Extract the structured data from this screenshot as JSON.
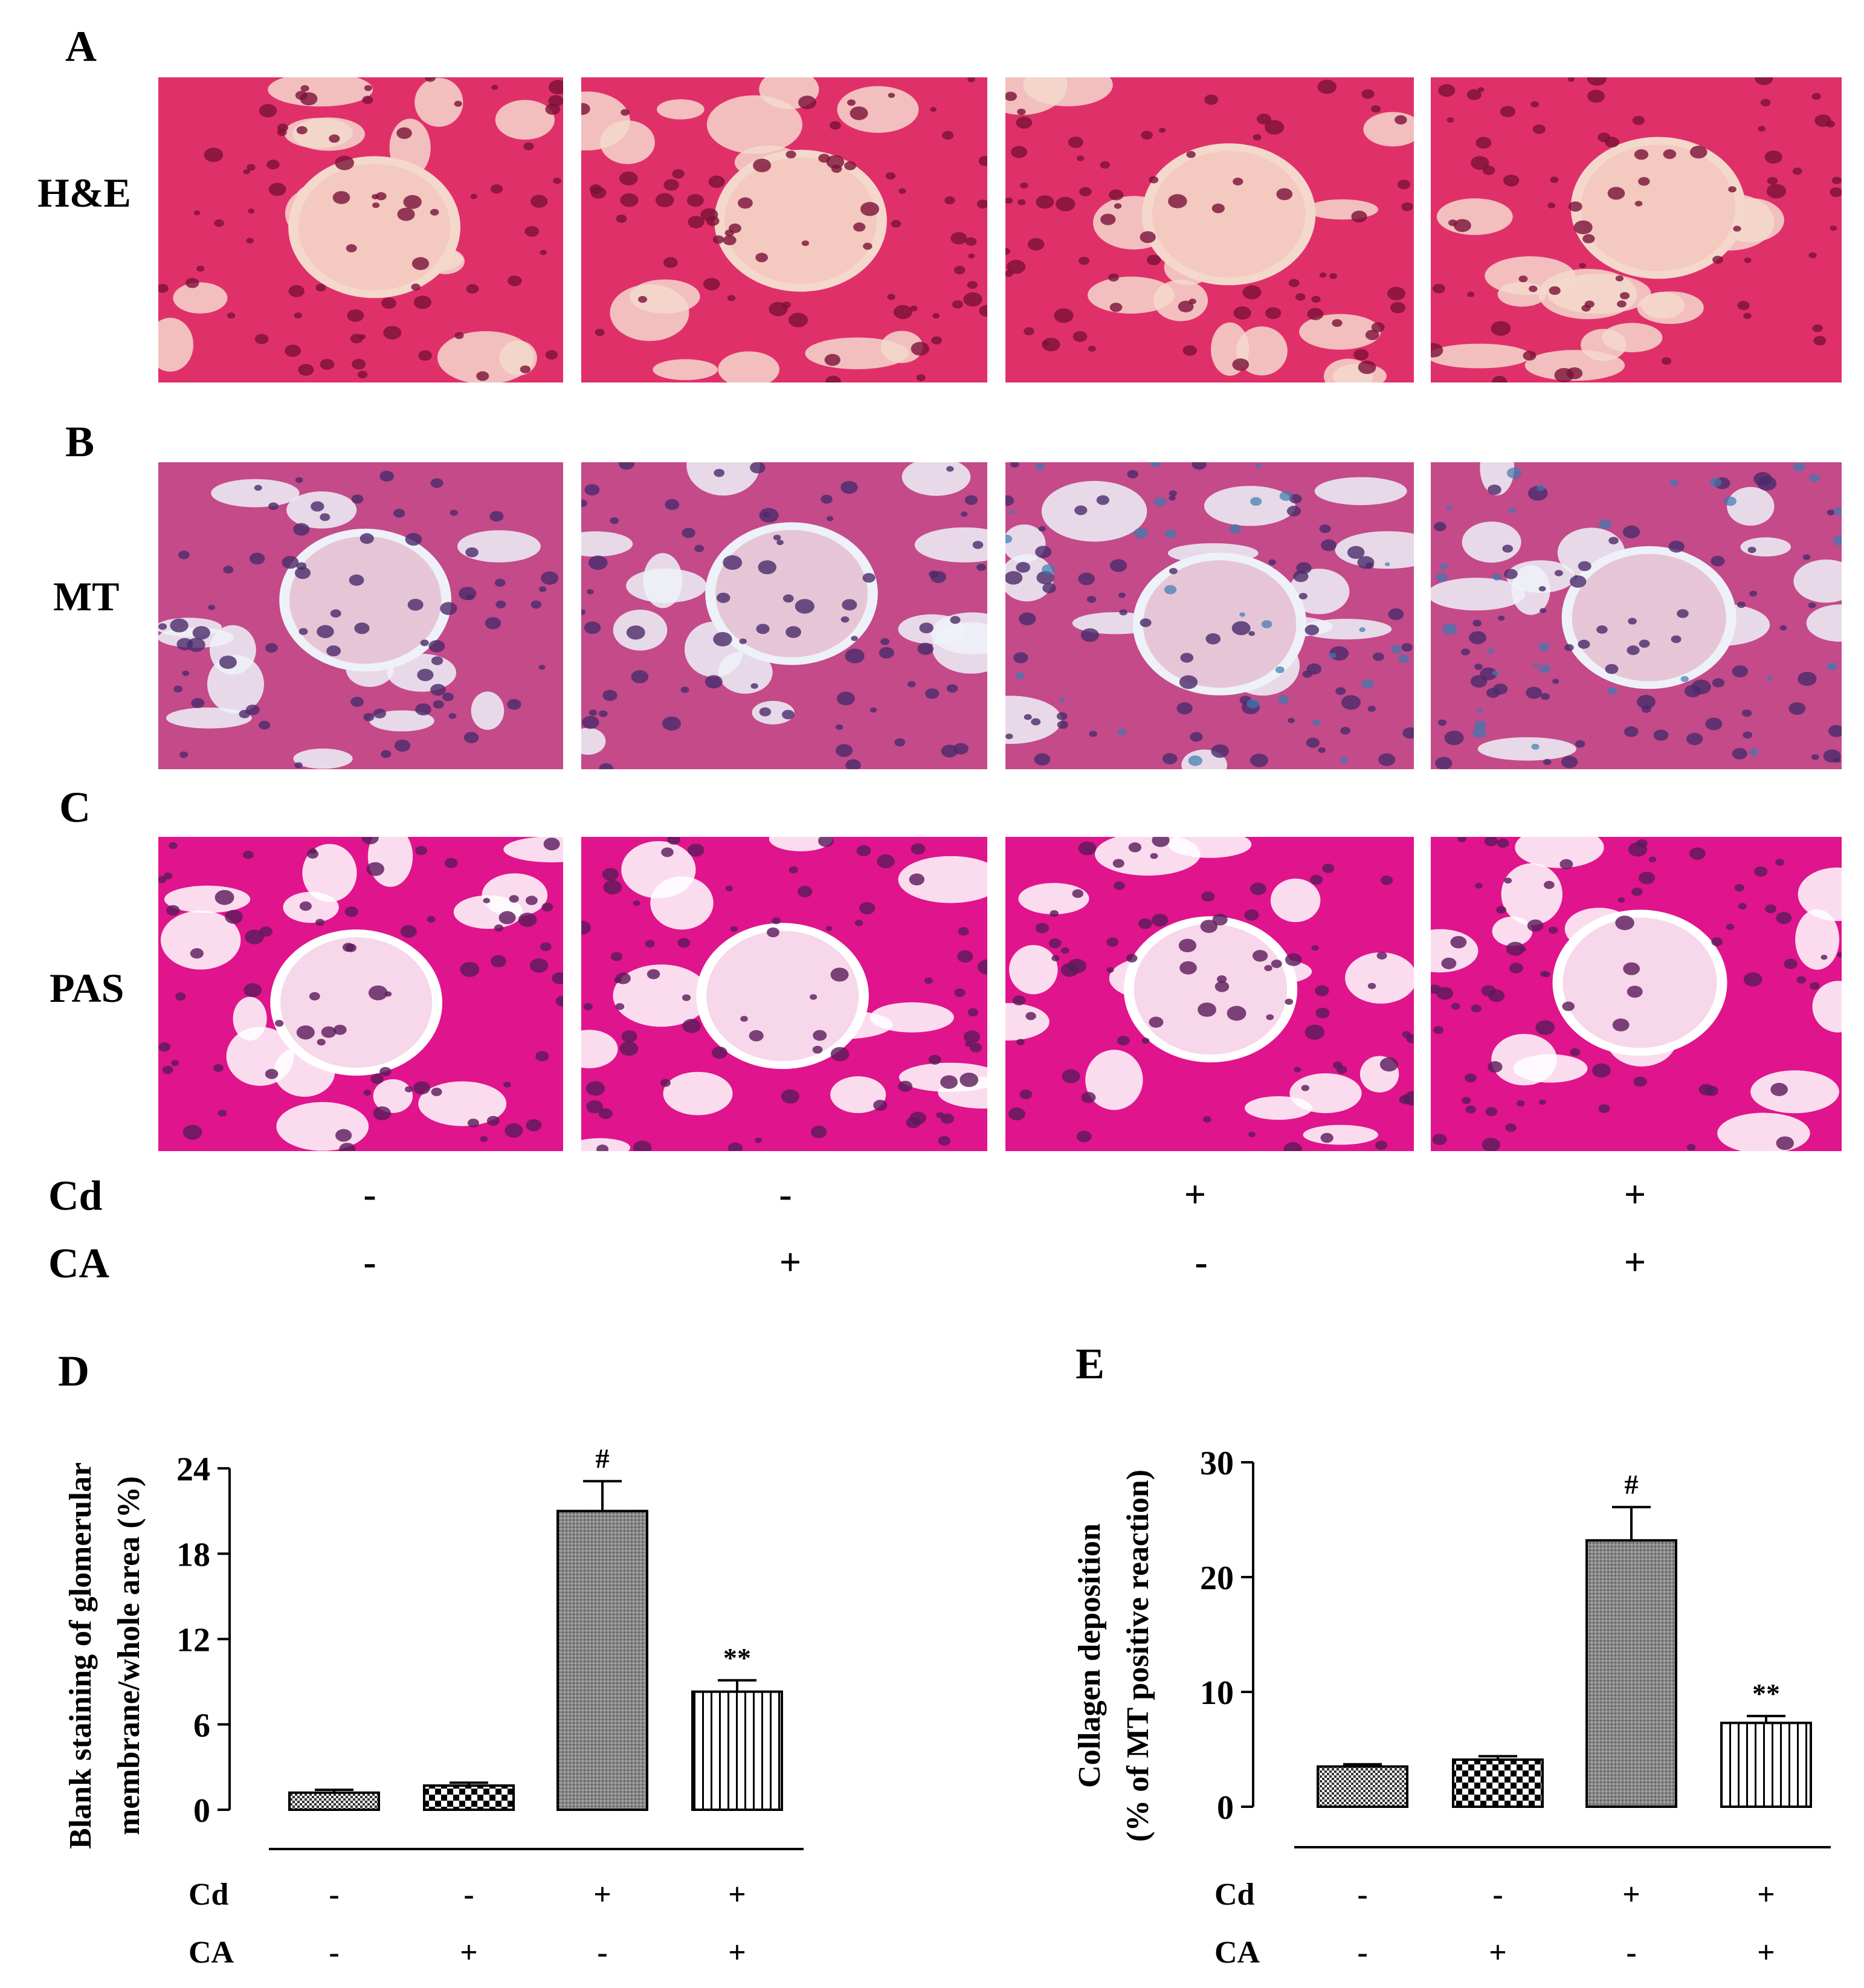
{
  "panels": {
    "A": "A",
    "B": "B",
    "C": "C",
    "D": "D",
    "E": "E"
  },
  "stains": [
    {
      "label": "H&E",
      "tiles": [
        "he-1",
        "he-2",
        "he-3",
        "he-4"
      ],
      "palette": {
        "bg": "#f3c9c0",
        "tissue": "#e0306a",
        "nuclei": "#7a1238",
        "pale": "#f5d8cc"
      }
    },
    {
      "label": "MT",
      "tiles": [
        "mt-1",
        "mt-2",
        "mt-3",
        "mt-4"
      ],
      "palette": {
        "bg": "#e6c6d6",
        "tissue": "#c44a8a",
        "nuclei": "#4a2a6a",
        "pale": "#eef2f8"
      }
    },
    {
      "label": "PAS",
      "tiles": [
        "pas-1",
        "pas-2",
        "pas-3",
        "pas-4"
      ],
      "palette": {
        "bg": "#f7d7ea",
        "tissue": "#e0148c",
        "nuclei": "#5a1a5a",
        "pale": "#ffffff"
      }
    }
  ],
  "treatment_table": {
    "rows": [
      {
        "name": "Cd",
        "signs": [
          "-",
          "-",
          "+",
          "+"
        ]
      },
      {
        "name": "CA",
        "signs": [
          "-",
          "+",
          "-",
          "+"
        ]
      }
    ]
  },
  "chart_data": [
    {
      "type": "bar",
      "panel": "D",
      "ylabel": "Blank staining of glomerular membrane/whole area (%)",
      "ylabel_lines": [
        "Blank staining of glomerular",
        "membrane/whole area (%)"
      ],
      "ylim": [
        0,
        24
      ],
      "yticks": [
        0,
        6,
        12,
        18,
        24
      ],
      "categories": [
        "1",
        "2",
        "3",
        "4"
      ],
      "values": [
        1.2,
        1.7,
        21.0,
        8.3
      ],
      "errors": [
        0.2,
        0.2,
        2.1,
        0.8
      ],
      "annotations": [
        "",
        "",
        "#",
        "**"
      ],
      "patterns": [
        "dense-check",
        "checker",
        "dots",
        "vlines"
      ],
      "treatment": {
        "rows": [
          {
            "name": "Cd",
            "signs": [
              "-",
              "-",
              "+",
              "+"
            ]
          },
          {
            "name": "CA",
            "signs": [
              "-",
              "+",
              "-",
              "+"
            ]
          }
        ]
      }
    },
    {
      "type": "bar",
      "panel": "E",
      "ylabel": "Collagen deposition (% of MT positive reaction)",
      "ylabel_lines": [
        "Collagen deposition",
        "(% of MT positive reaction)"
      ],
      "ylim": [
        0,
        30
      ],
      "yticks": [
        0,
        10,
        20,
        30
      ],
      "categories": [
        "1",
        "2",
        "3",
        "4"
      ],
      "values": [
        3.5,
        4.1,
        23.2,
        7.3
      ],
      "errors": [
        0.2,
        0.3,
        2.9,
        0.6
      ],
      "annotations": [
        "",
        "",
        "#",
        "**"
      ],
      "patterns": [
        "dense-check",
        "checker",
        "dots",
        "vlines"
      ],
      "treatment": {
        "rows": [
          {
            "name": "Cd",
            "signs": [
              "-",
              "-",
              "+",
              "+"
            ]
          },
          {
            "name": "CA",
            "signs": [
              "-",
              "+",
              "-",
              "+"
            ]
          }
        ]
      }
    }
  ]
}
